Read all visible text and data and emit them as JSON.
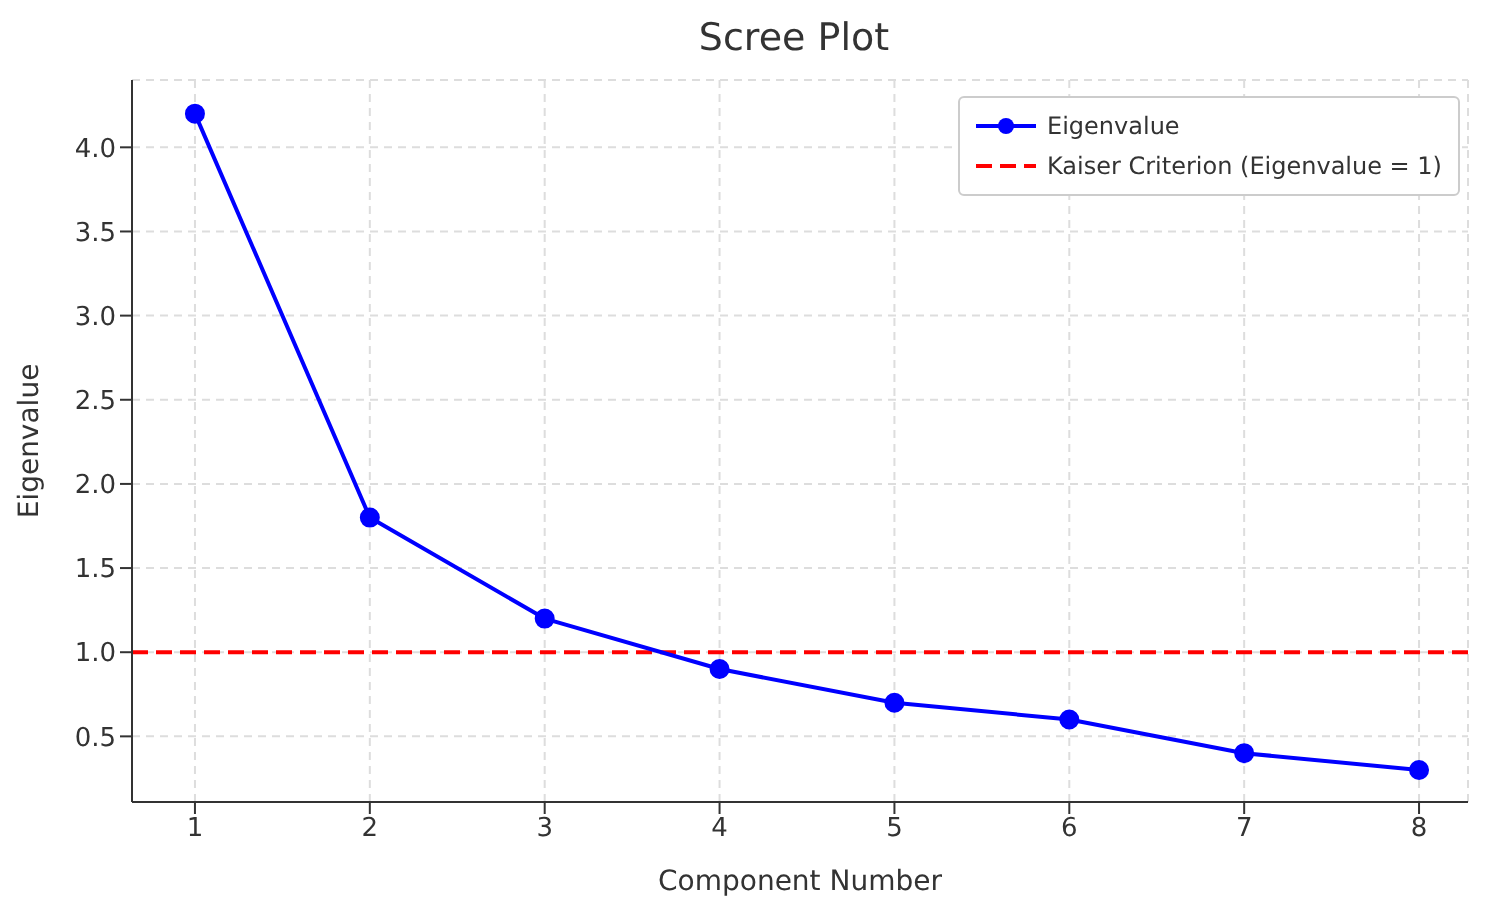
{
  "chart_data": {
    "type": "line",
    "title": "Scree Plot",
    "xlabel": "Component Number",
    "ylabel": "Eigenvalue",
    "x": [
      1,
      2,
      3,
      4,
      5,
      6,
      7,
      8
    ],
    "series": [
      {
        "name": "Eigenvalue",
        "color": "#0000ff",
        "values": [
          4.2,
          1.8,
          1.2,
          0.9,
          0.7,
          0.6,
          0.4,
          0.3
        ]
      }
    ],
    "xlim": [
      0.64,
      8.28
    ],
    "xticks": [
      1,
      2,
      3,
      4,
      5,
      6,
      7,
      8
    ],
    "ylim": [
      0.11,
      4.4
    ],
    "yticks": [
      0.5,
      {
        "value": 1,
        "label": "1.0"
      },
      1.5,
      {
        "value": 2,
        "label": "2.0"
      },
      2.5,
      {
        "value": 3,
        "label": "3.0"
      },
      3.5,
      {
        "value": 4,
        "label": "4.0"
      }
    ],
    "grid": true,
    "legend": "top right",
    "marker": "circle",
    "line_style": "solid",
    "ref_lines": [
      {
        "axis": "y",
        "value": 1,
        "label": "Kaiser Criterion (Eigenvalue = 1)",
        "color": "#ff0000",
        "line_style": "dashed"
      }
    ]
  }
}
